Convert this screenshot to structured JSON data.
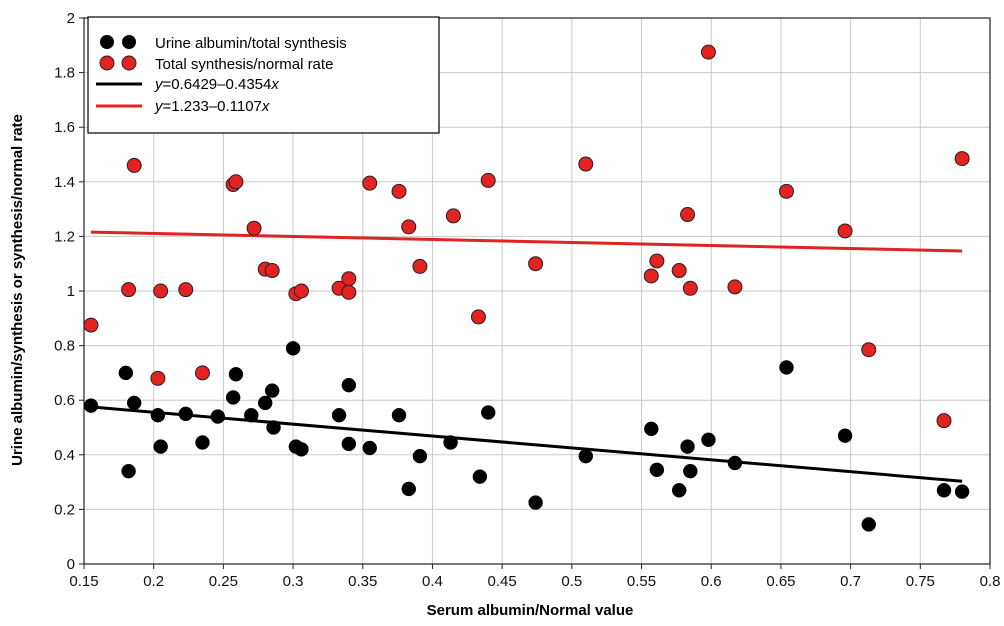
{
  "chart_data": {
    "type": "scatter",
    "xlabel": "Serum albumin/Normal value",
    "ylabel": "Urine albumin/synthesis or synthesis/normal rate",
    "xlim": [
      0.15,
      0.8
    ],
    "ylim": [
      0,
      2
    ],
    "x_ticks": [
      "0.15",
      "0.2",
      "0.25",
      "0.3",
      "0.35",
      "0.4",
      "0.45",
      "0.5",
      "0.55",
      "0.6",
      "0.65",
      "0.7",
      "0.75",
      "0.8"
    ],
    "y_ticks": [
      "0",
      "0.2",
      "0.4",
      "0.6",
      "0.8",
      "1",
      "1.2",
      "1.4",
      "1.6",
      "1.8",
      "2"
    ],
    "grid": true,
    "legend_position": "top-left",
    "series": [
      {
        "name": "Urine albumin/total synthesis",
        "kind": "points",
        "color": "#000000",
        "points": [
          [
            0.155,
            0.58
          ],
          [
            0.18,
            0.7
          ],
          [
            0.182,
            0.34
          ],
          [
            0.186,
            0.59
          ],
          [
            0.203,
            0.545
          ],
          [
            0.205,
            0.43
          ],
          [
            0.223,
            0.55
          ],
          [
            0.235,
            0.445
          ],
          [
            0.246,
            0.54
          ],
          [
            0.257,
            0.61
          ],
          [
            0.259,
            0.695
          ],
          [
            0.27,
            0.545
          ],
          [
            0.28,
            0.59
          ],
          [
            0.285,
            0.635
          ],
          [
            0.286,
            0.5
          ],
          [
            0.3,
            0.79
          ],
          [
            0.302,
            0.43
          ],
          [
            0.306,
            0.42
          ],
          [
            0.333,
            0.545
          ],
          [
            0.34,
            0.655
          ],
          [
            0.34,
            0.44
          ],
          [
            0.355,
            0.425
          ],
          [
            0.376,
            0.545
          ],
          [
            0.383,
            0.275
          ],
          [
            0.391,
            0.395
          ],
          [
            0.413,
            0.445
          ],
          [
            0.434,
            0.32
          ],
          [
            0.44,
            0.555
          ],
          [
            0.474,
            0.225
          ],
          [
            0.51,
            0.395
          ],
          [
            0.557,
            0.495
          ],
          [
            0.561,
            0.345
          ],
          [
            0.577,
            0.27
          ],
          [
            0.583,
            0.43
          ],
          [
            0.585,
            0.34
          ],
          [
            0.598,
            0.455
          ],
          [
            0.617,
            0.37
          ],
          [
            0.654,
            0.72
          ],
          [
            0.696,
            0.47
          ],
          [
            0.713,
            0.145
          ],
          [
            0.767,
            0.27
          ],
          [
            0.78,
            0.265
          ]
        ]
      },
      {
        "name": "Total synthesis/normal rate",
        "kind": "points",
        "color": "#e32322",
        "points": [
          [
            0.155,
            0.875
          ],
          [
            0.182,
            1.005
          ],
          [
            0.186,
            1.46
          ],
          [
            0.203,
            0.68
          ],
          [
            0.205,
            1.0
          ],
          [
            0.223,
            1.005
          ],
          [
            0.235,
            0.7
          ],
          [
            0.257,
            1.39
          ],
          [
            0.259,
            1.4
          ],
          [
            0.272,
            1.23
          ],
          [
            0.28,
            1.08
          ],
          [
            0.285,
            1.075
          ],
          [
            0.302,
            0.99
          ],
          [
            0.306,
            1.0
          ],
          [
            0.333,
            1.01
          ],
          [
            0.34,
            1.045
          ],
          [
            0.34,
            0.995
          ],
          [
            0.355,
            1.395
          ],
          [
            0.376,
            1.365
          ],
          [
            0.383,
            1.235
          ],
          [
            0.391,
            1.09
          ],
          [
            0.415,
            1.275
          ],
          [
            0.433,
            0.905
          ],
          [
            0.44,
            1.405
          ],
          [
            0.474,
            1.1
          ],
          [
            0.51,
            1.465
          ],
          [
            0.557,
            1.055
          ],
          [
            0.561,
            1.11
          ],
          [
            0.577,
            1.075
          ],
          [
            0.583,
            1.28
          ],
          [
            0.585,
            1.01
          ],
          [
            0.598,
            1.875
          ],
          [
            0.617,
            1.015
          ],
          [
            0.654,
            1.365
          ],
          [
            0.696,
            1.22
          ],
          [
            0.713,
            0.785
          ],
          [
            0.767,
            0.525
          ],
          [
            0.78,
            1.485
          ]
        ]
      },
      {
        "name": "y=0.6429–0.4354x",
        "kind": "line",
        "color": "#000000",
        "intercept": 0.6429,
        "slope": -0.4354,
        "x_range": [
          0.155,
          0.78
        ]
      },
      {
        "name": "y=1.233–0.1107x",
        "kind": "line",
        "color": "#e32322",
        "intercept": 1.233,
        "slope": -0.1107,
        "x_range": [
          0.155,
          0.78
        ]
      }
    ]
  }
}
